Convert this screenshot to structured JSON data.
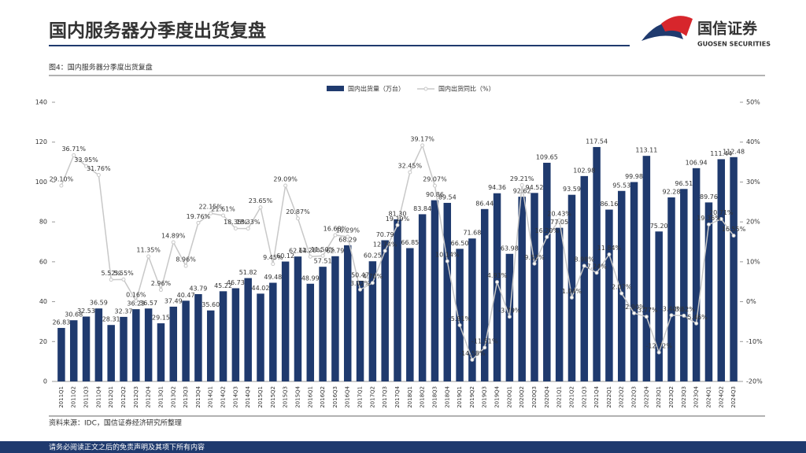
{
  "header": {
    "title": "国内服务器分季度出货复盘",
    "logo_cn": "国信证券",
    "logo_en": "GUOSEN SECURITIES"
  },
  "caption": "图4：国内服务器分季度出货复盘",
  "chart_data": {
    "type": "combo",
    "categories": [
      "2011Q1",
      "2011Q2",
      "2011Q3",
      "2011Q4",
      "2012Q1",
      "2012Q2",
      "2012Q3",
      "2012Q4",
      "2013Q1",
      "2013Q2",
      "2013Q3",
      "2013Q4",
      "2014Q1",
      "2014Q2",
      "2014Q3",
      "2014Q4",
      "2015Q1",
      "2015Q2",
      "2015Q3",
      "2015Q4",
      "2016Q1",
      "2016Q2",
      "2016Q3",
      "2016Q4",
      "2017Q1",
      "2017Q2",
      "2017Q3",
      "2017Q4",
      "2018Q1",
      "2018Q2",
      "2018Q3",
      "2018Q4",
      "2019Q1",
      "2019Q2",
      "2019Q3",
      "2019Q4",
      "2020Q1",
      "2020Q2",
      "2020Q3",
      "2020Q4",
      "2021Q1",
      "2021Q2",
      "2021Q3",
      "2021Q4",
      "2022Q1",
      "2022Q2",
      "2022Q3",
      "2022Q4",
      "2023Q1",
      "2023Q2",
      "2023Q3",
      "2023Q4",
      "2024Q1",
      "2024Q2",
      "2024Q3"
    ],
    "series": [
      {
        "name": "国内出货量（万台）",
        "type": "bar",
        "color": "#1f3a6e",
        "values": [
          26.83,
          30.68,
          32.53,
          36.59,
          28.31,
          32.37,
          36.23,
          36.57,
          29.15,
          37.49,
          40.47,
          43.79,
          35.6,
          45.22,
          46.73,
          51.82,
          44.02,
          49.48,
          60.12,
          62.64,
          48.99,
          57.51,
          62.79,
          68.29,
          50.47,
          60.25,
          70.79,
          81.3,
          66.85,
          83.84,
          90.86,
          89.54,
          66.5,
          71.68,
          86.44,
          94.36,
          63.98,
          92.62,
          94.52,
          109.65,
          77.05,
          93.59,
          102.98,
          117.54,
          86.16,
          95.53,
          99.98,
          113.11,
          75.2,
          92.28,
          96.51,
          106.94,
          89.76,
          111.44,
          112.48
        ],
        "value_labels": [
          "26.83",
          "30.68",
          "32.53",
          "36.59",
          "28.31",
          "32.37",
          "36.23",
          "36.57",
          "29.15",
          "37.49",
          "40.47",
          "43.79",
          "35.60",
          "45.22",
          "46.73",
          "51.82",
          "44.02",
          "49.48",
          "60.12",
          "62.64",
          "48.99",
          "57.51",
          "62.79",
          "68.29",
          "50.47",
          "60.25",
          "70.79",
          "81.30",
          "66.85",
          "83.84",
          "90.86",
          "89.54",
          "66.50",
          "71.68",
          "86.44",
          "94.36",
          "63.98",
          "92.62",
          "94.52",
          "109.65",
          "77.05",
          "93.59",
          "102.98",
          "117.54",
          "86.16",
          "95.53",
          "99.98",
          "113.11",
          "75.20",
          "92.28",
          "96.51",
          "106.94",
          "89.76",
          "111.44",
          "112.48"
        ]
      },
      {
        "name": "国内出货同比（%）",
        "type": "line",
        "axis": "y2",
        "color": "#c8c8c8",
        "values": [
          29.1,
          36.71,
          33.95,
          31.76,
          5.52,
          5.55,
          0.16,
          11.35,
          2.96,
          14.89,
          8.96,
          19.76,
          22.15,
          21.61,
          18.35,
          18.33,
          23.65,
          9.45,
          29.09,
          20.87,
          11.28,
          11.5,
          16.68,
          16.29,
          3.02,
          4.7,
          12.74,
          19.19,
          32.45,
          39.17,
          29.07,
          10.14,
          -5.91,
          -14.58,
          -11.51,
          4.93,
          -3.79,
          29.21,
          9.52,
          16.2,
          20.43,
          1.04,
          8.98,
          7.24,
          11.84,
          2.07,
          -2.9,
          -3.77,
          -12.72,
          -3.4,
          -3.52,
          -5.46,
          19.36,
          20.71,
          16.55
        ],
        "value_labels": [
          "29.10%",
          "36.71%",
          "33.95%",
          "31.76%",
          "5.52%",
          "5.55%",
          "0.16%",
          "11.35%",
          "2.96%",
          "14.89%",
          "8.96%",
          "19.76%",
          "22.15%",
          "21.61%",
          "18.35%",
          "18.33%",
          "23.65%",
          "9.45%",
          "29.09%",
          "20.87%",
          "11.28%",
          "11.50%",
          "16.68%",
          "16.29%",
          "3.02%",
          "4.70%",
          "12.74%",
          "19.19%",
          "32.45%",
          "39.17%",
          "29.07%",
          "10.14%",
          "-5.91%",
          "-14.58%",
          "-11.51%",
          "4.93%",
          "-3.79%",
          "29.21%",
          "9.52%",
          "16.20%",
          "20.43%",
          "1.04%",
          "8.98%",
          "7.24%",
          "11.84%",
          "2.07%",
          "-2.90%",
          "-3.77%",
          "-12.72%",
          "-3.40%",
          "-3.52%",
          "-5.46%",
          "19.36%",
          "20.71%",
          "16.55%"
        ]
      }
    ],
    "ylim": [
      0,
      140
    ],
    "yticks": [
      0,
      20,
      40,
      60,
      80,
      100,
      120,
      140
    ],
    "y2lim": [
      -20,
      50
    ],
    "y2ticks": [
      {
        "value": -20,
        "label": "-20%"
      },
      {
        "value": -10,
        "label": "-10%"
      },
      {
        "value": 0,
        "label": "0%"
      },
      {
        "value": 10,
        "label": "10%"
      },
      {
        "value": 20,
        "label": "20%"
      },
      {
        "value": 30,
        "label": "30%"
      },
      {
        "value": 40,
        "label": "40%"
      },
      {
        "value": 50,
        "label": "50%"
      }
    ],
    "legend": "top"
  },
  "source": "资料来源：IDC，国信证券经济研究所整理",
  "footer": "请务必阅读正文之后的免责声明及其项下所有内容"
}
